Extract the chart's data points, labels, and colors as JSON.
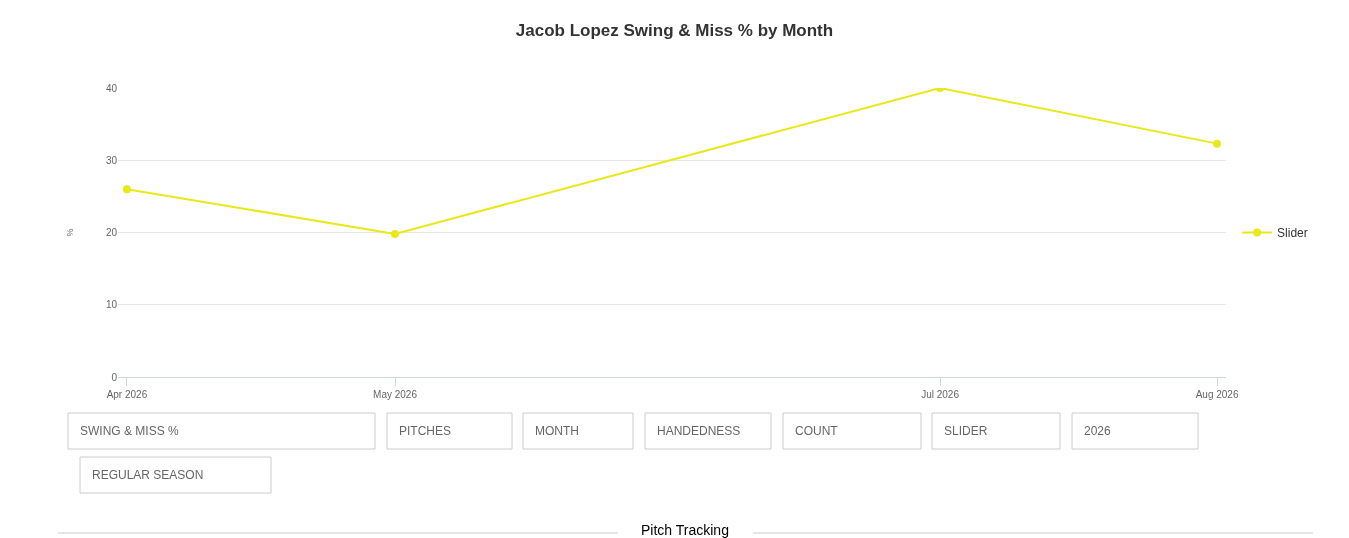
{
  "chart_data": {
    "type": "line",
    "title": "Jacob Lopez Swing & Miss % by Month",
    "ylabel": "%",
    "x": [
      "2026-04",
      "2026-05",
      "2026-07",
      "2026-08"
    ],
    "series": [
      {
        "name": "Slider",
        "color": "#e8e81a",
        "values": [
          26.0,
          19.8,
          40.0,
          32.3
        ]
      }
    ],
    "xlim": [
      "2026-03-31",
      "2026-08-02"
    ],
    "xticks": [
      {
        "value": "2026-04",
        "label": "Apr 2026"
      },
      {
        "value": "2026-05",
        "label": "May 2026"
      },
      {
        "value": "2026-07",
        "label": "Jul 2026"
      },
      {
        "value": "2026-08",
        "label": "Aug 2026"
      }
    ],
    "ylim": [
      0,
      40
    ],
    "yticks": [
      0,
      10,
      20,
      30,
      40
    ],
    "grid": "y",
    "legend": "right",
    "marker": "circle",
    "line_style": "solid",
    "annotations": [
      "SWING & MISS %",
      "PITCHES",
      "MONTH",
      "HANDEDNESS",
      "COUNT",
      "SLIDER",
      "2026",
      "REGULAR SEASON",
      "Pitch Tracking"
    ]
  }
}
